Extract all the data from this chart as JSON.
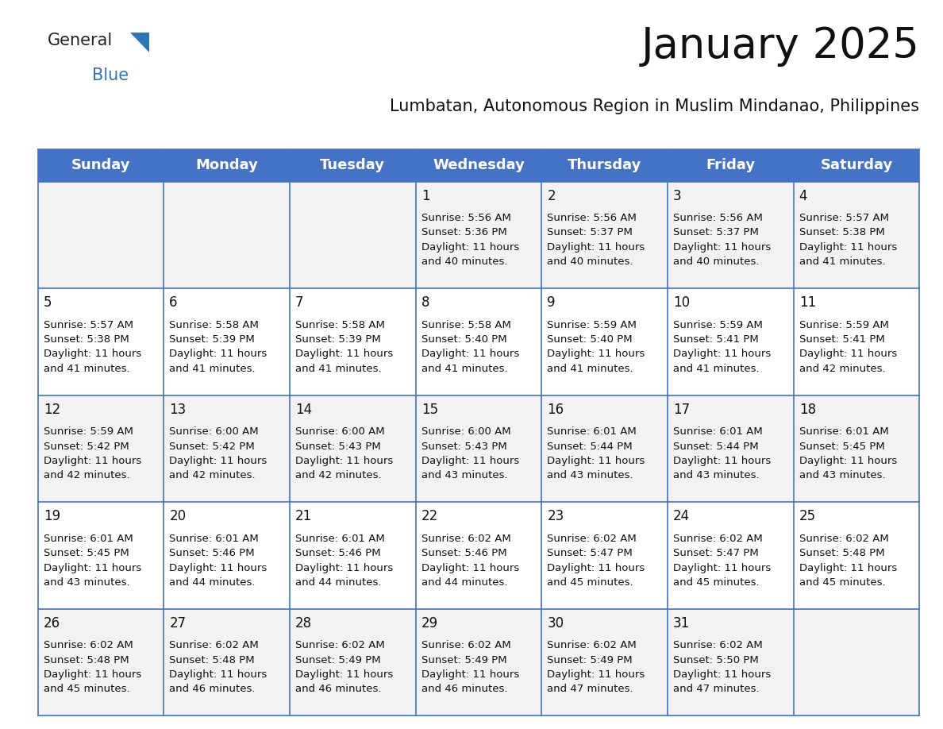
{
  "title": "January 2025",
  "subtitle": "Lumbatan, Autonomous Region in Muslim Mindanao, Philippines",
  "header_bg_color": "#4472C4",
  "header_text_color": "#FFFFFF",
  "cell_bg_color_odd": "#F2F2F2",
  "cell_bg_color_even": "#FFFFFF",
  "day_headers": [
    "Sunday",
    "Monday",
    "Tuesday",
    "Wednesday",
    "Thursday",
    "Friday",
    "Saturday"
  ],
  "title_fontsize": 38,
  "subtitle_fontsize": 15,
  "header_fontsize": 13,
  "cell_day_fontsize": 12,
  "cell_text_fontsize": 9.5,
  "grid_color": "#4472C4",
  "logo_general_color": "#222222",
  "logo_blue_color": "#2E75B6",
  "weeks": [
    [
      {
        "day": null,
        "sunrise": null,
        "sunset": null,
        "daylight": null
      },
      {
        "day": null,
        "sunrise": null,
        "sunset": null,
        "daylight": null
      },
      {
        "day": null,
        "sunrise": null,
        "sunset": null,
        "daylight": null
      },
      {
        "day": 1,
        "sunrise": "5:56 AM",
        "sunset": "5:36 PM",
        "daylight": "11 hours and 40 minutes."
      },
      {
        "day": 2,
        "sunrise": "5:56 AM",
        "sunset": "5:37 PM",
        "daylight": "11 hours and 40 minutes."
      },
      {
        "day": 3,
        "sunrise": "5:56 AM",
        "sunset": "5:37 PM",
        "daylight": "11 hours and 40 minutes."
      },
      {
        "day": 4,
        "sunrise": "5:57 AM",
        "sunset": "5:38 PM",
        "daylight": "11 hours and 41 minutes."
      }
    ],
    [
      {
        "day": 5,
        "sunrise": "5:57 AM",
        "sunset": "5:38 PM",
        "daylight": "11 hours and 41 minutes."
      },
      {
        "day": 6,
        "sunrise": "5:58 AM",
        "sunset": "5:39 PM",
        "daylight": "11 hours and 41 minutes."
      },
      {
        "day": 7,
        "sunrise": "5:58 AM",
        "sunset": "5:39 PM",
        "daylight": "11 hours and 41 minutes."
      },
      {
        "day": 8,
        "sunrise": "5:58 AM",
        "sunset": "5:40 PM",
        "daylight": "11 hours and 41 minutes."
      },
      {
        "day": 9,
        "sunrise": "5:59 AM",
        "sunset": "5:40 PM",
        "daylight": "11 hours and 41 minutes."
      },
      {
        "day": 10,
        "sunrise": "5:59 AM",
        "sunset": "5:41 PM",
        "daylight": "11 hours and 41 minutes."
      },
      {
        "day": 11,
        "sunrise": "5:59 AM",
        "sunset": "5:41 PM",
        "daylight": "11 hours and 42 minutes."
      }
    ],
    [
      {
        "day": 12,
        "sunrise": "5:59 AM",
        "sunset": "5:42 PM",
        "daylight": "11 hours and 42 minutes."
      },
      {
        "day": 13,
        "sunrise": "6:00 AM",
        "sunset": "5:42 PM",
        "daylight": "11 hours and 42 minutes."
      },
      {
        "day": 14,
        "sunrise": "6:00 AM",
        "sunset": "5:43 PM",
        "daylight": "11 hours and 42 minutes."
      },
      {
        "day": 15,
        "sunrise": "6:00 AM",
        "sunset": "5:43 PM",
        "daylight": "11 hours and 43 minutes."
      },
      {
        "day": 16,
        "sunrise": "6:01 AM",
        "sunset": "5:44 PM",
        "daylight": "11 hours and 43 minutes."
      },
      {
        "day": 17,
        "sunrise": "6:01 AM",
        "sunset": "5:44 PM",
        "daylight": "11 hours and 43 minutes."
      },
      {
        "day": 18,
        "sunrise": "6:01 AM",
        "sunset": "5:45 PM",
        "daylight": "11 hours and 43 minutes."
      }
    ],
    [
      {
        "day": 19,
        "sunrise": "6:01 AM",
        "sunset": "5:45 PM",
        "daylight": "11 hours and 43 minutes."
      },
      {
        "day": 20,
        "sunrise": "6:01 AM",
        "sunset": "5:46 PM",
        "daylight": "11 hours and 44 minutes."
      },
      {
        "day": 21,
        "sunrise": "6:01 AM",
        "sunset": "5:46 PM",
        "daylight": "11 hours and 44 minutes."
      },
      {
        "day": 22,
        "sunrise": "6:02 AM",
        "sunset": "5:46 PM",
        "daylight": "11 hours and 44 minutes."
      },
      {
        "day": 23,
        "sunrise": "6:02 AM",
        "sunset": "5:47 PM",
        "daylight": "11 hours and 45 minutes."
      },
      {
        "day": 24,
        "sunrise": "6:02 AM",
        "sunset": "5:47 PM",
        "daylight": "11 hours and 45 minutes."
      },
      {
        "day": 25,
        "sunrise": "6:02 AM",
        "sunset": "5:48 PM",
        "daylight": "11 hours and 45 minutes."
      }
    ],
    [
      {
        "day": 26,
        "sunrise": "6:02 AM",
        "sunset": "5:48 PM",
        "daylight": "11 hours and 45 minutes."
      },
      {
        "day": 27,
        "sunrise": "6:02 AM",
        "sunset": "5:48 PM",
        "daylight": "11 hours and 46 minutes."
      },
      {
        "day": 28,
        "sunrise": "6:02 AM",
        "sunset": "5:49 PM",
        "daylight": "11 hours and 46 minutes."
      },
      {
        "day": 29,
        "sunrise": "6:02 AM",
        "sunset": "5:49 PM",
        "daylight": "11 hours and 46 minutes."
      },
      {
        "day": 30,
        "sunrise": "6:02 AM",
        "sunset": "5:49 PM",
        "daylight": "11 hours and 47 minutes."
      },
      {
        "day": 31,
        "sunrise": "6:02 AM",
        "sunset": "5:50 PM",
        "daylight": "11 hours and 47 minutes."
      },
      {
        "day": null,
        "sunrise": null,
        "sunset": null,
        "daylight": null
      }
    ]
  ]
}
